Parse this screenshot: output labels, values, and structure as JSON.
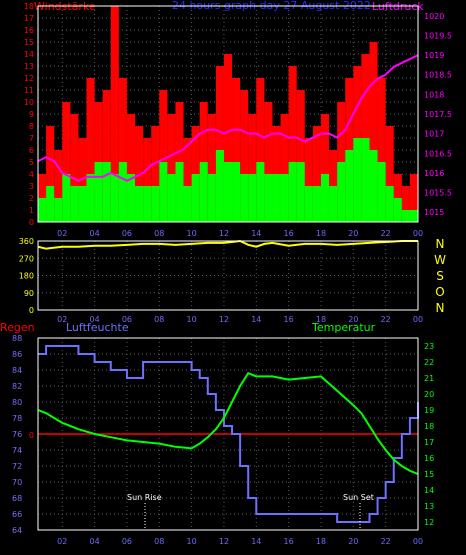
{
  "header": {
    "left_label": "Windstärke",
    "title": "24 hours graph day  27 August 2022",
    "right_label": "Luftdruck"
  },
  "wind_pressure": {
    "wind_ticks": [
      "0",
      "1",
      "2",
      "3",
      "4",
      "5",
      "6",
      "7",
      "8",
      "9",
      "10",
      "11",
      "12",
      "13",
      "14",
      "15",
      "16",
      "17",
      "18"
    ],
    "pressure_ticks": [
      "1015",
      "1015.5",
      "1016",
      "1016.5",
      "1017",
      "1017.5",
      "1018",
      "1018.5",
      "1019",
      "1019.5",
      "1020"
    ],
    "x_ticks": [
      "02",
      "04",
      "06",
      "08",
      "10",
      "12",
      "14",
      "16",
      "18",
      "20",
      "22",
      "00"
    ]
  },
  "direction": {
    "y_ticks": [
      "0",
      "90",
      "180",
      "270",
      "360"
    ],
    "compass": [
      "N",
      "W",
      "S",
      "O",
      "N"
    ],
    "x_ticks": [
      "02",
      "04",
      "06",
      "08",
      "10",
      "12",
      "14",
      "16",
      "18",
      "20",
      "22",
      "00"
    ]
  },
  "lower": {
    "regen_label": "Regen",
    "humidity_label": "Luftfeuchte",
    "temperature_label": "Temperatur",
    "regen_tick": "0",
    "humidity_ticks": [
      "64",
      "66",
      "68",
      "70",
      "72",
      "74",
      "76",
      "78",
      "80",
      "82",
      "84",
      "86",
      "88"
    ],
    "temperature_ticks": [
      "12",
      "13",
      "14",
      "15",
      "16",
      "17",
      "18",
      "19",
      "20",
      "21",
      "22",
      "23"
    ],
    "x_ticks": [
      "02",
      "04",
      "06",
      "08",
      "10",
      "12",
      "14",
      "16",
      "18",
      "20",
      "22",
      "00"
    ],
    "sunrise_label": "Sun Rise",
    "sunset_label": "Sun Set"
  },
  "colors": {
    "wind_gust": "#ff0000",
    "wind_avg": "#00ff00",
    "pressure": "#ff00ff",
    "direction": "#ffff00",
    "humidity": "#7070ff",
    "temperature": "#00ff00",
    "rain": "#ff0000",
    "axis_left_top": "#ff0000",
    "axis_right_top": "#ff00ff",
    "grid": "#5a5a5a"
  },
  "chart_data": [
    {
      "type": "bar",
      "title": "24 hours graph day  27 August 2022",
      "ylabel": "Windstärke",
      "ylim": [
        0,
        18
      ],
      "x_unit": "hour",
      "xlim": [
        0.5,
        24
      ],
      "series": [
        {
          "name": "Windstärke",
          "x": [
            1.0,
            1.5,
            2.0,
            2.5,
            3.0,
            3.5,
            4.0,
            4.5,
            5.0,
            5.5,
            6.0,
            6.5,
            7.0,
            7.5,
            8.0,
            8.5,
            9.0,
            9.5,
            10.0,
            10.5,
            11.0,
            11.5,
            12.0,
            12.5,
            13.0,
            13.5,
            14.0,
            14.5,
            15.0,
            15.5,
            16.0,
            16.5,
            17.0,
            17.5,
            18.0,
            18.5,
            19.0,
            19.5,
            20.0,
            20.5,
            21.0,
            21.5,
            22.0,
            22.5,
            23.0,
            23.5,
            24.0
          ],
          "values": [
            4,
            8,
            6,
            10,
            9,
            7,
            12,
            10,
            11,
            18,
            12,
            9,
            8,
            7,
            8,
            11,
            9,
            10,
            7,
            8,
            10,
            9,
            13,
            14,
            12,
            11,
            9,
            12,
            10,
            8,
            9,
            13,
            11,
            7,
            8,
            9,
            6,
            10,
            12,
            13,
            14,
            15,
            12,
            8,
            4,
            3,
            4
          ]
        },
        {
          "name": "Wind avg",
          "x": [
            1.0,
            1.5,
            2.0,
            2.5,
            3.0,
            3.5,
            4.0,
            4.5,
            5.0,
            5.5,
            6.0,
            6.5,
            7.0,
            7.5,
            8.0,
            8.5,
            9.0,
            9.5,
            10.0,
            10.5,
            11.0,
            11.5,
            12.0,
            12.5,
            13.0,
            13.5,
            14.0,
            14.5,
            15.0,
            15.5,
            16.0,
            16.5,
            17.0,
            17.5,
            18.0,
            18.5,
            19.0,
            19.5,
            20.0,
            20.5,
            21.0,
            21.5,
            22.0,
            22.5,
            23.0,
            23.5,
            24.0
          ],
          "values": [
            2,
            3,
            2,
            4,
            3,
            3,
            4,
            5,
            5,
            4,
            5,
            4,
            3,
            3,
            3,
            5,
            4,
            5,
            3,
            4,
            5,
            4,
            6,
            5,
            5,
            4,
            4,
            5,
            4,
            4,
            4,
            5,
            5,
            3,
            3,
            4,
            3,
            5,
            6,
            7,
            7,
            6,
            5,
            3,
            2,
            1,
            1
          ]
        }
      ]
    },
    {
      "type": "line",
      "ylabel": "Luftdruck",
      "ylim": [
        1014.75,
        1020.25
      ],
      "x": [
        0.5,
        1,
        1.5,
        2,
        2.5,
        3,
        3.5,
        4,
        4.5,
        5,
        5.5,
        6,
        6.5,
        7,
        7.5,
        8,
        8.5,
        9,
        9.5,
        10,
        10.5,
        11,
        11.5,
        12,
        12.5,
        13,
        13.5,
        14,
        14.5,
        15,
        15.5,
        16,
        16.5,
        17,
        17.5,
        18,
        18.5,
        19,
        19.5,
        20,
        20.5,
        21,
        21.5,
        22,
        22.5,
        23,
        23.5,
        24
      ],
      "series": [
        {
          "name": "Luftdruck",
          "values": [
            1016.3,
            1016.4,
            1016.3,
            1016.0,
            1015.9,
            1015.8,
            1015.9,
            1015.9,
            1015.9,
            1016.0,
            1015.9,
            1015.8,
            1015.9,
            1016.0,
            1016.2,
            1016.3,
            1016.4,
            1016.5,
            1016.6,
            1016.8,
            1017.0,
            1017.1,
            1017.1,
            1017.0,
            1017.1,
            1017.1,
            1017.0,
            1017.0,
            1016.9,
            1017.0,
            1017.0,
            1016.9,
            1016.9,
            1016.8,
            1016.9,
            1017.0,
            1017.0,
            1016.9,
            1017.1,
            1017.5,
            1017.9,
            1018.2,
            1018.4,
            1018.5,
            1018.7,
            1018.8,
            1018.9,
            1019.0
          ]
        }
      ]
    },
    {
      "type": "line",
      "ylim": [
        0,
        360
      ],
      "x": [
        0.5,
        1,
        2,
        3,
        4,
        5,
        6,
        7,
        8,
        9,
        10,
        11,
        12,
        13,
        13.5,
        14,
        14.5,
        15,
        16,
        17,
        18,
        19,
        20,
        21,
        22,
        23,
        24
      ],
      "series": [
        {
          "name": "Windrichtung",
          "values": [
            330,
            320,
            330,
            330,
            335,
            335,
            340,
            345,
            345,
            340,
            345,
            350,
            350,
            360,
            340,
            330,
            345,
            350,
            335,
            345,
            345,
            340,
            345,
            350,
            355,
            360,
            360
          ]
        }
      ]
    },
    {
      "type": "line",
      "ylabel": "Luftfeuchte",
      "ylim": [
        64,
        88
      ],
      "x": [
        0.5,
        1,
        2,
        3,
        4,
        4.5,
        5,
        6,
        7,
        8,
        9,
        10,
        10.5,
        11,
        11.5,
        12,
        12.5,
        13,
        13.5,
        14,
        15,
        16,
        17,
        18,
        19,
        20,
        20.5,
        21,
        21.5,
        22,
        22.5,
        23,
        23.5,
        24
      ],
      "series": [
        {
          "name": "Luftfeuchte",
          "values": [
            86,
            87,
            87,
            86,
            85,
            85,
            84,
            83,
            85,
            85,
            85,
            84,
            83,
            81,
            79,
            77,
            76,
            72,
            68,
            66,
            66,
            66,
            66,
            66,
            65,
            65,
            65,
            66,
            68,
            70,
            73,
            76,
            78,
            80
          ]
        }
      ]
    },
    {
      "type": "line",
      "ylabel": "Temperatur",
      "ylim": [
        11.5,
        23.5
      ],
      "x": [
        0.5,
        1,
        2,
        3,
        4,
        5,
        6,
        7,
        8,
        9,
        10,
        10.5,
        11,
        11.5,
        12,
        12.5,
        13,
        13.5,
        14,
        15,
        16,
        17,
        18,
        19,
        20,
        20.5,
        21,
        21.5,
        22,
        22.5,
        23,
        23.5,
        24
      ],
      "series": [
        {
          "name": "Temperatur",
          "values": [
            19.0,
            18.8,
            18.2,
            17.8,
            17.5,
            17.3,
            17.1,
            17.0,
            16.9,
            16.7,
            16.6,
            16.9,
            17.3,
            17.8,
            18.5,
            19.5,
            20.5,
            21.3,
            21.1,
            21.1,
            20.9,
            21.0,
            21.1,
            20.2,
            19.3,
            18.8,
            18.0,
            17.2,
            16.5,
            15.9,
            15.5,
            15.2,
            15.0
          ]
        }
      ]
    },
    {
      "type": "line",
      "ylabel": "Regen",
      "x": [
        0.5,
        24
      ],
      "series": [
        {
          "name": "Regen",
          "values": [
            0,
            0
          ]
        }
      ]
    }
  ]
}
